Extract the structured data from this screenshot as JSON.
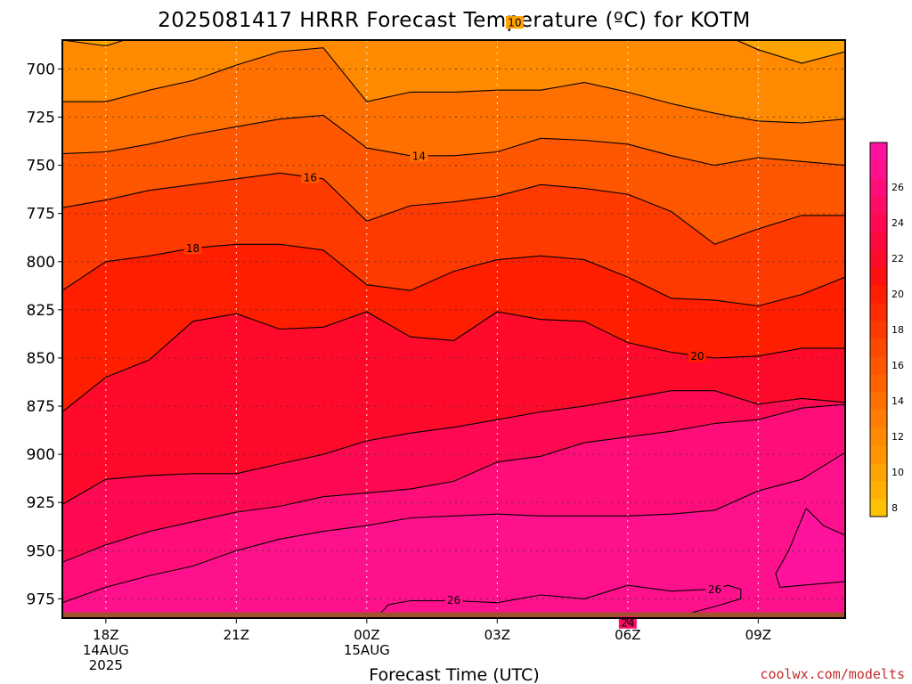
{
  "chart_data": {
    "type": "heatmap",
    "title": "2025081417 HRRR Forecast Temperature (ºC) for KOTM",
    "xlabel": "Forecast Time (UTC)",
    "ylabel": "",
    "y_scale": "pressure (inverted)",
    "ylim": [
      985,
      685
    ],
    "y_ticks": [
      700,
      725,
      750,
      775,
      800,
      825,
      850,
      875,
      900,
      925,
      950,
      975
    ],
    "x_ticks": [
      {
        "hour": 1,
        "lines": [
          "18Z",
          "14AUG",
          "2025"
        ]
      },
      {
        "hour": 4,
        "lines": [
          "21Z"
        ]
      },
      {
        "hour": 7,
        "lines": [
          "00Z",
          "15AUG"
        ]
      },
      {
        "hour": 10,
        "lines": [
          "03Z"
        ]
      },
      {
        "hour": 13,
        "lines": [
          "06Z"
        ]
      },
      {
        "hour": 16,
        "lines": [
          "09Z"
        ]
      }
    ],
    "xlim": [
      0,
      18
    ],
    "grid": true,
    "colorbar": {
      "levels": [
        7,
        8,
        9,
        10,
        11,
        12,
        13,
        14,
        15,
        16,
        17,
        18,
        19,
        20,
        21,
        22,
        23,
        24,
        25,
        26,
        27,
        28
      ],
      "tick_labels": [
        8,
        10,
        12,
        14,
        16,
        18,
        20,
        22,
        24,
        26
      ],
      "colors": [
        "#ffc000",
        "#ffb000",
        "#ffa300",
        "#ff9600",
        "#ff8a00",
        "#ff7d00",
        "#ff7000",
        "#ff6300",
        "#ff5600",
        "#ff4800",
        "#ff3a00",
        "#ff2c00",
        "#ff1e00",
        "#ff1010",
        "#ff0a2a",
        "#ff083e",
        "#ff0a52",
        "#ff0c66",
        "#ff0e7a",
        "#ff108c",
        "#ff129c"
      ]
    },
    "contours": [
      {
        "value": 10,
        "label": "10",
        "points": [
          [
            0,
            685
          ],
          [
            1,
            688
          ],
          [
            2,
            681
          ],
          [
            4,
            680
          ],
          [
            5,
            679
          ],
          [
            6,
            677
          ],
          [
            7,
            676
          ],
          [
            8,
            675
          ],
          [
            9,
            674
          ],
          [
            10,
            675
          ],
          [
            11,
            677
          ],
          [
            12,
            676
          ],
          [
            13,
            675
          ],
          [
            14,
            677
          ],
          [
            15,
            680
          ],
          [
            16,
            690
          ],
          [
            17,
            697
          ],
          [
            18,
            691
          ]
        ]
      },
      {
        "value": 12,
        "label": "",
        "points": [
          [
            0,
            717
          ],
          [
            1,
            717
          ],
          [
            2,
            711
          ],
          [
            3,
            706
          ],
          [
            4,
            698
          ],
          [
            5,
            691
          ],
          [
            6,
            689
          ],
          [
            7,
            717
          ],
          [
            8,
            712
          ],
          [
            9,
            712
          ],
          [
            10,
            711
          ],
          [
            11,
            711
          ],
          [
            12,
            707
          ],
          [
            13,
            712
          ],
          [
            14,
            718
          ],
          [
            15,
            723
          ],
          [
            16,
            727
          ],
          [
            17,
            728
          ],
          [
            18,
            726
          ]
        ]
      },
      {
        "value": 14,
        "label": "14",
        "points": [
          [
            0,
            744
          ],
          [
            1,
            743
          ],
          [
            2,
            739
          ],
          [
            3,
            734
          ],
          [
            4,
            730
          ],
          [
            5,
            726
          ],
          [
            6,
            724
          ],
          [
            7,
            741
          ],
          [
            8,
            745
          ],
          [
            9,
            745
          ],
          [
            10,
            743
          ],
          [
            11,
            736
          ],
          [
            12,
            737
          ],
          [
            13,
            739
          ],
          [
            14,
            745
          ],
          [
            15,
            750
          ],
          [
            16,
            746
          ],
          [
            17,
            748
          ],
          [
            18,
            750
          ]
        ]
      },
      {
        "value": 16,
        "label": "16",
        "points": [
          [
            0,
            772
          ],
          [
            1,
            768
          ],
          [
            2,
            763
          ],
          [
            3,
            760
          ],
          [
            4,
            757
          ],
          [
            5,
            754
          ],
          [
            6,
            757
          ],
          [
            7,
            779
          ],
          [
            8,
            771
          ],
          [
            9,
            769
          ],
          [
            10,
            766
          ],
          [
            11,
            760
          ],
          [
            12,
            762
          ],
          [
            13,
            765
          ],
          [
            14,
            774
          ],
          [
            15,
            791
          ],
          [
            16,
            783
          ],
          [
            17,
            776
          ],
          [
            18,
            776
          ]
        ]
      },
      {
        "value": 18,
        "label": "18",
        "points": [
          [
            0,
            815
          ],
          [
            1,
            800
          ],
          [
            2,
            797
          ],
          [
            3,
            793
          ],
          [
            4,
            791
          ],
          [
            5,
            791
          ],
          [
            6,
            794
          ],
          [
            7,
            812
          ],
          [
            8,
            815
          ],
          [
            9,
            805
          ],
          [
            10,
            799
          ],
          [
            11,
            797
          ],
          [
            12,
            799
          ],
          [
            13,
            808
          ],
          [
            14,
            819
          ],
          [
            15,
            820
          ],
          [
            16,
            823
          ],
          [
            17,
            817
          ],
          [
            18,
            808
          ]
        ]
      },
      {
        "value": 20,
        "label": "20",
        "points": [
          [
            0,
            878
          ],
          [
            1,
            860
          ],
          [
            2,
            851
          ],
          [
            3,
            831
          ],
          [
            4,
            827
          ],
          [
            5,
            835
          ],
          [
            6,
            834
          ],
          [
            7,
            826
          ],
          [
            8,
            839
          ],
          [
            9,
            841
          ],
          [
            10,
            826
          ],
          [
            11,
            830
          ],
          [
            12,
            831
          ],
          [
            13,
            842
          ],
          [
            14,
            847
          ],
          [
            15,
            850
          ],
          [
            16,
            849
          ],
          [
            17,
            845
          ],
          [
            18,
            845
          ]
        ]
      },
      {
        "value": 22,
        "label": "",
        "points": [
          [
            0,
            926
          ],
          [
            1,
            913
          ],
          [
            2,
            911
          ],
          [
            3,
            910
          ],
          [
            4,
            910
          ],
          [
            5,
            905
          ],
          [
            6,
            900
          ],
          [
            7,
            893
          ],
          [
            8,
            889
          ],
          [
            9,
            886
          ],
          [
            10,
            882
          ],
          [
            11,
            878
          ],
          [
            12,
            875
          ],
          [
            13,
            871
          ],
          [
            14,
            867
          ],
          [
            15,
            867
          ],
          [
            16,
            874
          ],
          [
            17,
            871
          ],
          [
            18,
            873
          ]
        ]
      },
      {
        "value": 24,
        "label": "",
        "points": [
          [
            0,
            956
          ],
          [
            1,
            947
          ],
          [
            2,
            940
          ],
          [
            3,
            935
          ],
          [
            4,
            930
          ],
          [
            5,
            927
          ],
          [
            6,
            922
          ],
          [
            7,
            920
          ],
          [
            8,
            918
          ],
          [
            9,
            914
          ],
          [
            10,
            904
          ],
          [
            11,
            901
          ],
          [
            12,
            894
          ],
          [
            13,
            891
          ],
          [
            14,
            888
          ],
          [
            15,
            884
          ],
          [
            16,
            882
          ],
          [
            17,
            876
          ],
          [
            18,
            874
          ]
        ]
      },
      {
        "value": 26,
        "label": "26",
        "points": [
          [
            0,
            977
          ],
          [
            1,
            969
          ],
          [
            2,
            963
          ],
          [
            3,
            958
          ],
          [
            4,
            950
          ],
          [
            5,
            944
          ],
          [
            6,
            940
          ],
          [
            7,
            937
          ],
          [
            8,
            933
          ],
          [
            9,
            932
          ],
          [
            10,
            931
          ],
          [
            11,
            932
          ],
          [
            12,
            932
          ],
          [
            13,
            932
          ],
          [
            14,
            931
          ],
          [
            15,
            929
          ],
          [
            16,
            919
          ],
          [
            17,
            913
          ],
          [
            18,
            899
          ]
        ]
      }
    ],
    "inner_contours": [
      {
        "value": 28,
        "label": "",
        "points": [
          [
            17.1,
            928
          ],
          [
            17.5,
            937
          ],
          [
            18,
            942
          ],
          [
            18,
            966
          ],
          [
            16.5,
            969
          ],
          [
            16.4,
            962
          ],
          [
            16.7,
            950
          ],
          [
            17.1,
            928
          ]
        ]
      },
      {
        "value": 26,
        "label": "26",
        "points": [
          [
            7,
            990
          ],
          [
            7.5,
            978
          ],
          [
            8,
            976
          ],
          [
            9,
            976
          ],
          [
            10,
            977
          ],
          [
            11,
            973
          ],
          [
            12,
            975
          ],
          [
            13,
            968
          ],
          [
            14,
            971
          ],
          [
            15,
            970
          ],
          [
            15.3,
            968
          ],
          [
            15.6,
            970
          ],
          [
            15.6,
            975
          ],
          [
            15.0,
            979
          ],
          [
            14,
            985
          ]
        ]
      },
      {
        "value": 24,
        "label": "24",
        "points": [
          [
            11,
            990
          ],
          [
            12,
            988
          ],
          [
            13,
            988
          ],
          [
            14,
            986
          ],
          [
            15,
            985
          ],
          [
            16,
            984
          ],
          [
            17,
            984
          ],
          [
            18,
            983
          ]
        ]
      }
    ],
    "ground": {
      "top_hpa": 982,
      "color": "#a0522d"
    },
    "source_credit": "coolwx.com/modelts"
  }
}
